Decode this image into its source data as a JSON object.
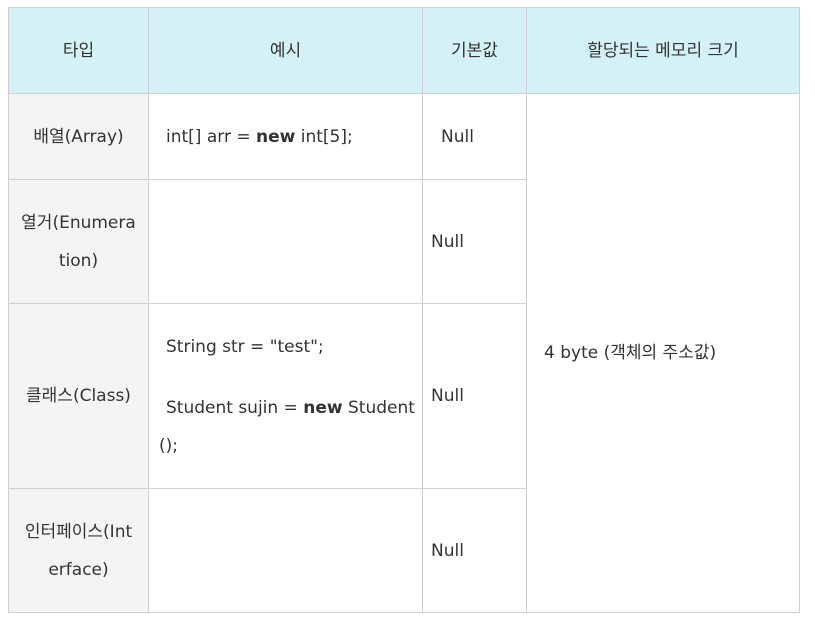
{
  "table": {
    "headers": {
      "type": "타입",
      "example": "예시",
      "default": "기본값",
      "size": "할당되는 메모리 크기"
    },
    "rows": [
      {
        "type": "배열(Array)",
        "example": {
          "prefix": "int[] arr = ",
          "keyword": "new",
          "suffix": " int[5];"
        },
        "default": "Null"
      },
      {
        "type_line1": "열거(Enumera",
        "type_line2": "tion)",
        "default": "Null"
      },
      {
        "type": "클래스(Class)",
        "example_line1": "String str = \"test\";",
        "example_line2": {
          "prefix": "Student sujin = ",
          "keyword": "new",
          "suffix": " Student"
        },
        "example_line3": "();",
        "default": "Null"
      },
      {
        "type_line1": "인터페이스(Int",
        "type_line2": "erface)",
        "default": "Null"
      }
    ],
    "size_value": "4 byte (객체의 주소값)"
  }
}
